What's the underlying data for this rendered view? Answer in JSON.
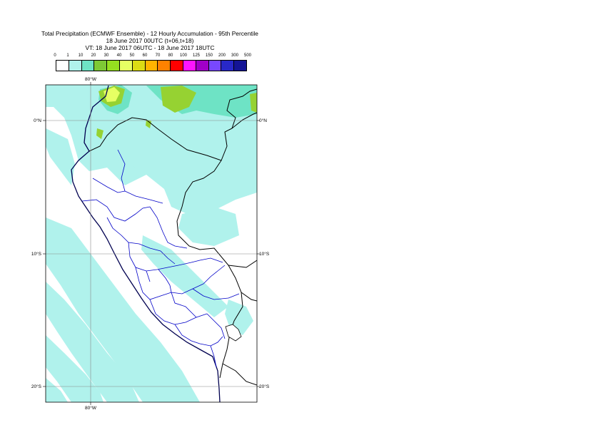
{
  "title": {
    "line1": "Total Precipitation (ECMWF Ensemble) - 12 Hourly Accumulation - 95th Percentile",
    "line2": "18 June 2017 00UTC (t+06,t+18)",
    "line3": "VT: 18 June 2017 06UTC - 18 June 2017 18UTC"
  },
  "legend": {
    "labels": [
      "0",
      "1",
      "10",
      "20",
      "30",
      "40",
      "50",
      "60",
      "70",
      "80",
      "100",
      "125",
      "150",
      "200",
      "300",
      "500"
    ],
    "colors": [
      "#ffffff",
      "#b0f2ec",
      "#6ee3c5",
      "#7ec935",
      "#96e020",
      "#e6ff63",
      "#dcdc14",
      "#ffb400",
      "#ff8200",
      "#ff0000",
      "#ff14ff",
      "#a000c8",
      "#7848ff",
      "#2828c8",
      "#141496",
      "#0a0a50"
    ]
  },
  "map": {
    "lon_top": "80°W",
    "lon_bottom": "80°W",
    "lat_left": [
      "0°N",
      "10°S",
      "20°S"
    ],
    "lat_right": [
      "0°N",
      "10°S",
      "20°S"
    ],
    "land_color": "#ffffff",
    "light_precip_color": "#b0f2ec",
    "medium_precip_color": "#6ee3c5",
    "green_precip_color": "#96d232",
    "yellow_precip_color": "#e6ff63",
    "border_color": "#000000",
    "coast_color": "#000050",
    "region_color": "#0000c8"
  }
}
